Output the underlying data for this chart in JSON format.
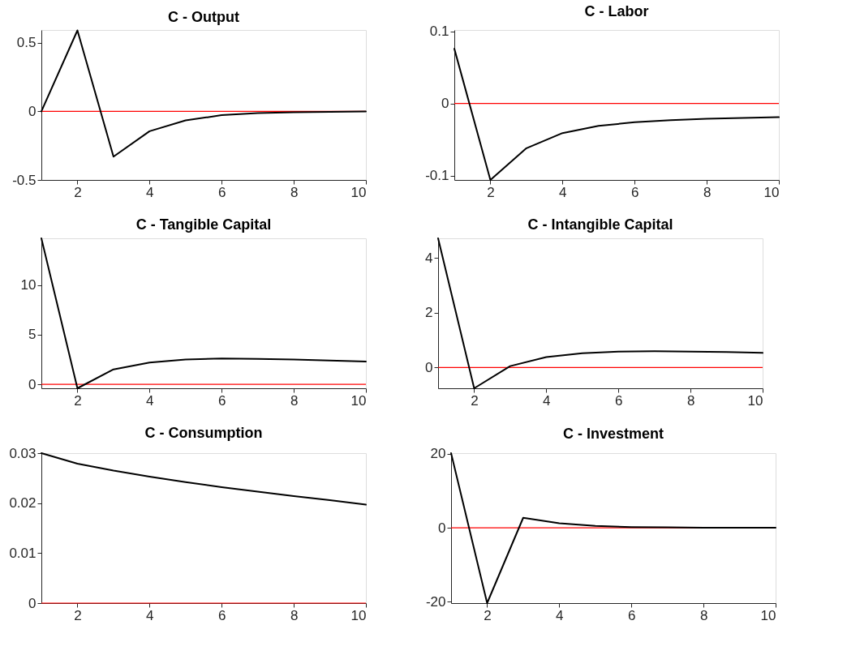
{
  "chart_data": [
    {
      "type": "line",
      "title": "C - Output",
      "x": [
        1,
        2,
        3,
        4,
        5,
        6,
        7,
        8,
        9,
        10
      ],
      "series": [
        {
          "color": "#000000",
          "values": [
            0,
            0.59,
            -0.33,
            -0.145,
            -0.066,
            -0.028,
            -0.013,
            -0.006,
            -0.003,
            -0.001
          ]
        }
      ],
      "xlim": [
        1,
        10
      ],
      "xticks": [
        2,
        4,
        6,
        8,
        10
      ],
      "ylim": [
        -0.5,
        0.593
      ],
      "yticks": [
        -0.5,
        0,
        0.5
      ],
      "ref_lines": [
        {
          "axis": "y",
          "value": 0,
          "color": "#ff0000"
        }
      ],
      "grid": false
    },
    {
      "type": "line",
      "title": "C - Labor",
      "x": [
        1,
        2,
        3,
        4,
        5,
        6,
        7,
        8,
        9,
        10
      ],
      "series": [
        {
          "color": "#000000",
          "values": [
            0.076,
            -0.106,
            -0.062,
            -0.041,
            -0.031,
            -0.026,
            -0.023,
            -0.021,
            -0.02,
            -0.019
          ]
        }
      ],
      "xlim": [
        1,
        10
      ],
      "xticks": [
        2,
        4,
        6,
        8,
        10
      ],
      "ylim": [
        -0.106,
        0.102
      ],
      "yticks": [
        -0.1,
        0,
        0.1
      ],
      "ref_lines": [
        {
          "axis": "y",
          "value": 0,
          "color": "#ff0000"
        }
      ],
      "grid": false
    },
    {
      "type": "line",
      "title": "C - Tangible Capital",
      "x": [
        1,
        2,
        3,
        4,
        5,
        6,
        7,
        8,
        9,
        10
      ],
      "series": [
        {
          "color": "#000000",
          "values": [
            14.7,
            -0.4,
            1.5,
            2.2,
            2.5,
            2.6,
            2.55,
            2.5,
            2.4,
            2.3
          ]
        }
      ],
      "xlim": [
        1,
        10
      ],
      "xticks": [
        2,
        4,
        6,
        8,
        10
      ],
      "ylim": [
        -0.4,
        14.7
      ],
      "yticks": [
        0,
        5,
        10
      ],
      "ref_lines": [
        {
          "axis": "y",
          "value": 0,
          "color": "#ff0000"
        }
      ],
      "grid": false
    },
    {
      "type": "line",
      "title": "C - Intangible Capital",
      "x": [
        1,
        2,
        3,
        4,
        5,
        6,
        7,
        8,
        9,
        10
      ],
      "series": [
        {
          "color": "#000000",
          "values": [
            4.71,
            -0.76,
            0.05,
            0.38,
            0.52,
            0.58,
            0.59,
            0.58,
            0.56,
            0.53
          ]
        }
      ],
      "xlim": [
        1,
        10
      ],
      "xticks": [
        2,
        4,
        6,
        8,
        10
      ],
      "ylim": [
        -0.76,
        4.71
      ],
      "yticks": [
        0,
        2,
        4
      ],
      "ref_lines": [
        {
          "axis": "y",
          "value": 0,
          "color": "#ff0000"
        }
      ],
      "grid": false
    },
    {
      "type": "line",
      "title": "C - Consumption",
      "x": [
        1,
        2,
        3,
        4,
        5,
        6,
        7,
        8,
        9,
        10
      ],
      "series": [
        {
          "color": "#000000",
          "values": [
            0.03,
            0.0279,
            0.0265,
            0.0253,
            0.0242,
            0.0232,
            0.0223,
            0.0214,
            0.0206,
            0.0197
          ]
        }
      ],
      "xlim": [
        1,
        10
      ],
      "xticks": [
        2,
        4,
        6,
        8,
        10
      ],
      "ylim": [
        0,
        0.03
      ],
      "yticks": [
        0,
        0.01,
        0.02,
        0.03
      ],
      "ref_lines": [
        {
          "axis": "y",
          "value": 0,
          "color": "#ff0000"
        }
      ],
      "grid": false
    },
    {
      "type": "line",
      "title": "C - Investment",
      "x": [
        1,
        2,
        3,
        4,
        5,
        6,
        7,
        8,
        9,
        10
      ],
      "series": [
        {
          "color": "#000000",
          "values": [
            20.2,
            -20.4,
            2.7,
            1.2,
            0.5,
            0.2,
            0.1,
            0.0,
            0.0,
            0.0
          ]
        }
      ],
      "xlim": [
        1,
        10
      ],
      "xticks": [
        2,
        4,
        6,
        8,
        10
      ],
      "ylim": [
        -20.4,
        20.2
      ],
      "yticks": [
        -20,
        0,
        20
      ],
      "ref_lines": [
        {
          "axis": "y",
          "value": 0,
          "color": "#ff0000"
        }
      ],
      "grid": false
    }
  ]
}
